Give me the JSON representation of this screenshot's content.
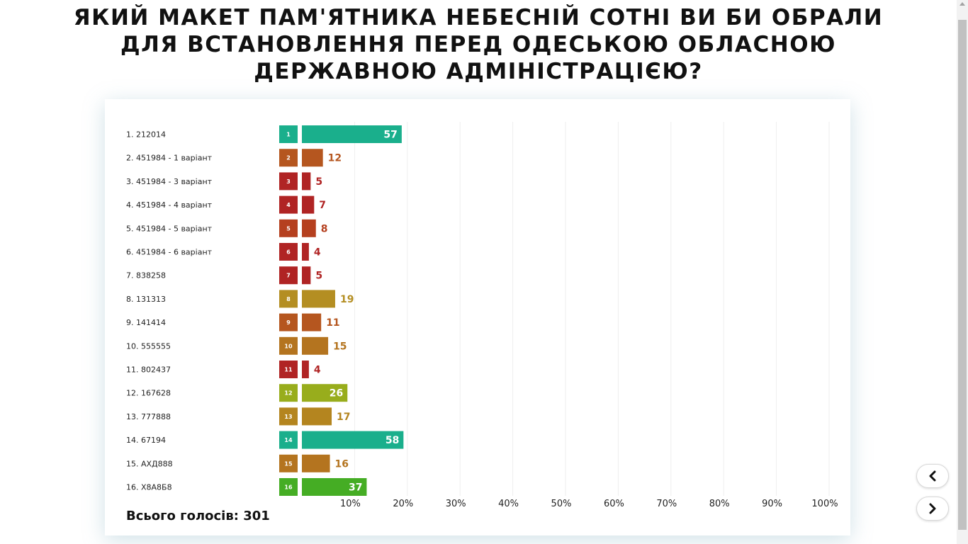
{
  "poll": {
    "question": "ЯКИЙ МАКЕТ ПАМ'ЯТНИКА НЕБЕСНІЙ СОТНІ ВИ БИ ОБРАЛИ ДЛЯ ВСТАНОВЛЕННЯ ПЕРЕД ОДЕСЬКОЮ ОБЛАСНОЮ ДЕРЖАВНОЮ АДМІНІСТРАЦІЄЮ?",
    "total_label": "Всього голосів: 301"
  },
  "navigation": {
    "prev_icon": "chevron-left-icon",
    "next_icon": "chevron-right-icon"
  },
  "chart_data": {
    "type": "bar",
    "orientation": "horizontal",
    "title": "ЯКИЙ МАКЕТ ПАМ'ЯТНИКА НЕБЕСНІЙ СОТНІ ВИ БИ ОБРАЛИ ДЛЯ ВСТАНОВЛЕННЯ ПЕРЕД ОДЕСЬКОЮ ОБЛАСНОЮ ДЕРЖАВНОЮ АДМІНІСТРАЦІЄЮ?",
    "xlim": [
      0,
      100
    ],
    "x_ticks": [
      "10%",
      "20%",
      "30%",
      "40%",
      "50%",
      "60%",
      "70%",
      "80%",
      "90%",
      "100%"
    ],
    "grid": true,
    "total_votes": 301,
    "categories": [
      "1. 212014",
      "2. 451984 - 1 варіант",
      "3. 451984 - 3 варіант",
      "4. 451984 - 4 варіант",
      "5. 451984 - 5 варіант",
      "6. 451984 - 6 варіант",
      "7. 838258",
      "8. 131313",
      "9. 141414",
      "10. 555555",
      "11. 802437",
      "12. 167628",
      "13. 777888",
      "14. 67194",
      "15. АХД888",
      "16. Х8А8Б8"
    ],
    "badges": [
      "1",
      "2",
      "3",
      "4",
      "5",
      "6",
      "7",
      "8",
      "9",
      "10",
      "11",
      "12",
      "13",
      "14",
      "15",
      "16"
    ],
    "values": [
      57,
      12,
      5,
      7,
      8,
      4,
      5,
      19,
      11,
      15,
      4,
      26,
      17,
      58,
      16,
      37
    ],
    "colors": [
      "#1aaf8c",
      "#b5561f",
      "#b02424",
      "#b02424",
      "#b5401f",
      "#b02424",
      "#b02424",
      "#b48e22",
      "#b5561f",
      "#b4741f",
      "#b02424",
      "#98ad1c",
      "#b4851f",
      "#1aaf8c",
      "#b4741f",
      "#45ad24"
    ]
  }
}
